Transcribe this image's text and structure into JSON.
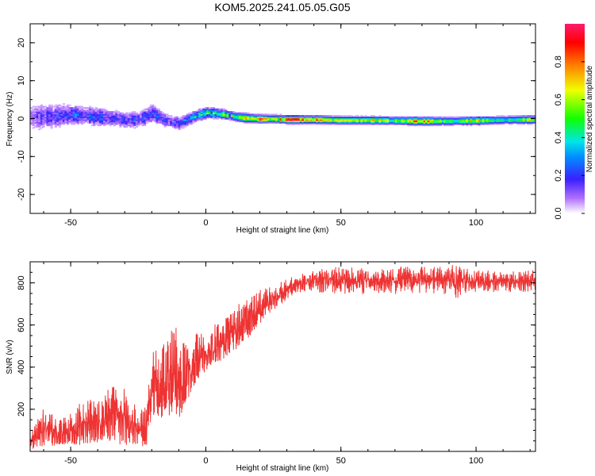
{
  "title": "KOM5.2025.241.05.05.G05",
  "colors": {
    "snr_line": "#ee3333",
    "axis": "#000000",
    "background": "#ffffff"
  },
  "chart_data": [
    {
      "type": "heatmap",
      "title": "KOM5.2025.241.05.05.G05",
      "xlabel": "Height of straight line (km)",
      "ylabel": "Frequency (Hz)",
      "xlim": [
        -65,
        122
      ],
      "ylim": [
        -25,
        25
      ],
      "xticks": [
        -50,
        0,
        50,
        100
      ],
      "yticks": [
        -20,
        -10,
        0,
        10,
        20
      ],
      "colorbar": {
        "label": "Normalized spectral amplitude",
        "range": [
          0,
          1
        ],
        "ticks": [
          "0.0",
          "0.2",
          "0.4",
          "0.6",
          "0.8"
        ],
        "colormap": "hsv-rainbow (white-violet-blue-cyan-green-yellow-red-pink)"
      },
      "ridge": {
        "description": "Dominant spectral ridge: frequency centre, spread and peak amplitude vs height",
        "x": [
          -65,
          -60,
          -55,
          -50,
          -45,
          -40,
          -35,
          -30,
          -25,
          -20,
          -15,
          -10,
          -5,
          0,
          5,
          10,
          15,
          20,
          25,
          30,
          40,
          50,
          60,
          70,
          80,
          90,
          100,
          110,
          122
        ],
        "freq": [
          0.5,
          0.5,
          0.8,
          1.2,
          0.8,
          0.5,
          0.2,
          -0.3,
          -0.2,
          1.5,
          -0.5,
          -1.2,
          0.5,
          1.6,
          1.4,
          0.6,
          0.2,
          0.0,
          0.0,
          -0.2,
          -0.2,
          -0.4,
          -0.4,
          -0.5,
          -0.6,
          -0.6,
          -0.5,
          -0.3,
          -0.2
        ],
        "spread": [
          3.2,
          3.0,
          2.5,
          2.2,
          2.0,
          2.0,
          1.8,
          1.8,
          1.8,
          2.0,
          1.5,
          1.4,
          1.2,
          1.1,
          1.0,
          0.9,
          0.9,
          0.8,
          0.8,
          0.8,
          0.8,
          0.8,
          0.8,
          0.8,
          0.8,
          0.8,
          0.8,
          0.8,
          0.8
        ],
        "amp": [
          0.12,
          0.15,
          0.18,
          0.22,
          0.22,
          0.25,
          0.22,
          0.2,
          0.2,
          0.25,
          0.2,
          0.25,
          0.35,
          0.55,
          0.45,
          0.55,
          0.7,
          0.85,
          0.6,
          0.95,
          0.8,
          0.6,
          0.7,
          0.55,
          0.9,
          0.5,
          0.75,
          0.35,
          0.8
        ]
      }
    },
    {
      "type": "line",
      "xlabel": "Height of straight line (km)",
      "ylabel": "SNR (v/v)",
      "xlim": [
        -65,
        122
      ],
      "ylim": [
        0,
        900
      ],
      "xticks": [
        -50,
        0,
        50,
        100
      ],
      "yticks": [
        200,
        400,
        600,
        800
      ],
      "series": [
        {
          "name": "SNR",
          "envelope": {
            "x": [
              -65,
              -60,
              -55,
              -50,
              -45,
              -40,
              -35,
              -30,
              -25,
              -22,
              -20,
              -15,
              -12,
              -10,
              -8,
              -5,
              0,
              5,
              10,
              15,
              20,
              25,
              30,
              35,
              40,
              50,
              60,
              70,
              80,
              90,
              92,
              95,
              100,
              110,
              122
            ],
            "min": [
              10,
              20,
              30,
              20,
              30,
              40,
              50,
              20,
              20,
              20,
              150,
              150,
              180,
              150,
              200,
              300,
              380,
              420,
              470,
              530,
              600,
              670,
              720,
              750,
              750,
              740,
              740,
              740,
              740,
              740,
              700,
              740,
              750,
              750,
              750
            ],
            "max": [
              90,
              220,
              160,
              180,
              260,
              240,
              320,
              300,
              200,
              230,
              470,
              560,
              620,
              580,
              520,
              560,
              580,
              620,
              690,
              730,
              770,
              790,
              820,
              840,
              860,
              880,
              870,
              880,
              880,
              880,
              900,
              870,
              860,
              860,
              860
            ]
          }
        }
      ]
    }
  ]
}
